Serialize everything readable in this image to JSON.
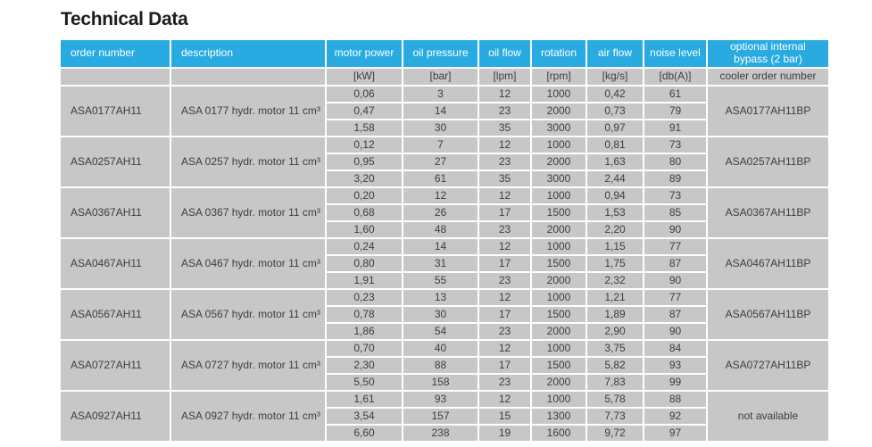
{
  "page_title": "Technical Data",
  "colors": {
    "header_bg": "#29abe2",
    "header_text": "#ffffff",
    "cell_bg": "#c7c7c7",
    "cell_text": "#3d3d3d",
    "title_text": "#1d1d1b"
  },
  "table": {
    "headers": [
      "order number",
      "description",
      "motor power",
      "oil pressure",
      "oil flow",
      "rotation",
      "air flow",
      "noise level",
      "optional internal bypass (2 bar)"
    ],
    "units": [
      "",
      "",
      "[kW]",
      "[bar]",
      "[lpm]",
      "[rpm]",
      "[kg/s]",
      "[db(A)]",
      "cooler order number"
    ],
    "groups": [
      {
        "order_number": "ASA0177AH11",
        "description": "ASA 0177 hydr. motor 11 cm³",
        "bypass": "ASA0177AH11BP",
        "rows": [
          [
            "0,06",
            "3",
            "12",
            "1000",
            "0,42",
            "61"
          ],
          [
            "0,47",
            "14",
            "23",
            "2000",
            "0,73",
            "79"
          ],
          [
            "1,58",
            "30",
            "35",
            "3000",
            "0,97",
            "91"
          ]
        ]
      },
      {
        "order_number": "ASA0257AH11",
        "description": "ASA 0257 hydr. motor 11 cm³",
        "bypass": "ASA0257AH11BP",
        "rows": [
          [
            "0,12",
            "7",
            "12",
            "1000",
            "0,81",
            "73"
          ],
          [
            "0,95",
            "27",
            "23",
            "2000",
            "1,63",
            "80"
          ],
          [
            "3,20",
            "61",
            "35",
            "3000",
            "2,44",
            "89"
          ]
        ]
      },
      {
        "order_number": "ASA0367AH11",
        "description": "ASA 0367 hydr. motor 11 cm³",
        "bypass": "ASA0367AH11BP",
        "rows": [
          [
            "0,20",
            "12",
            "12",
            "1000",
            "0,94",
            "73"
          ],
          [
            "0,68",
            "26",
            "17",
            "1500",
            "1,53",
            "85"
          ],
          [
            "1,60",
            "48",
            "23",
            "2000",
            "2,20",
            "90"
          ]
        ]
      },
      {
        "order_number": "ASA0467AH11",
        "description": "ASA 0467 hydr. motor 11 cm³",
        "bypass": "ASA0467AH11BP",
        "rows": [
          [
            "0,24",
            "14",
            "12",
            "1000",
            "1,15",
            "77"
          ],
          [
            "0,80",
            "31",
            "17",
            "1500",
            "1,75",
            "87"
          ],
          [
            "1,91",
            "55",
            "23",
            "2000",
            "2,32",
            "90"
          ]
        ]
      },
      {
        "order_number": "ASA0567AH11",
        "description": "ASA 0567 hydr. motor 11 cm³",
        "bypass": "ASA0567AH11BP",
        "rows": [
          [
            "0,23",
            "13",
            "12",
            "1000",
            "1,21",
            "77"
          ],
          [
            "0,78",
            "30",
            "17",
            "1500",
            "1,89",
            "87"
          ],
          [
            "1,86",
            "54",
            "23",
            "2000",
            "2,90",
            "90"
          ]
        ]
      },
      {
        "order_number": "ASA0727AH11",
        "description": "ASA 0727 hydr. motor 11 cm³",
        "bypass": "ASA0727AH11BP",
        "rows": [
          [
            "0,70",
            "40",
            "12",
            "1000",
            "3,75",
            "84"
          ],
          [
            "2,30",
            "88",
            "17",
            "1500",
            "5,82",
            "93"
          ],
          [
            "5,50",
            "158",
            "23",
            "2000",
            "7,83",
            "99"
          ]
        ]
      },
      {
        "order_number": "ASA0927AH11",
        "description": "ASA 0927 hydr. motor 11 cm³",
        "bypass": "not available",
        "rows": [
          [
            "1,61",
            "93",
            "12",
            "1000",
            "5,78",
            "88"
          ],
          [
            "3,54",
            "157",
            "15",
            "1300",
            "7,73",
            "92"
          ],
          [
            "6,60",
            "238",
            "19",
            "1600",
            "9,72",
            "97"
          ]
        ]
      }
    ]
  }
}
